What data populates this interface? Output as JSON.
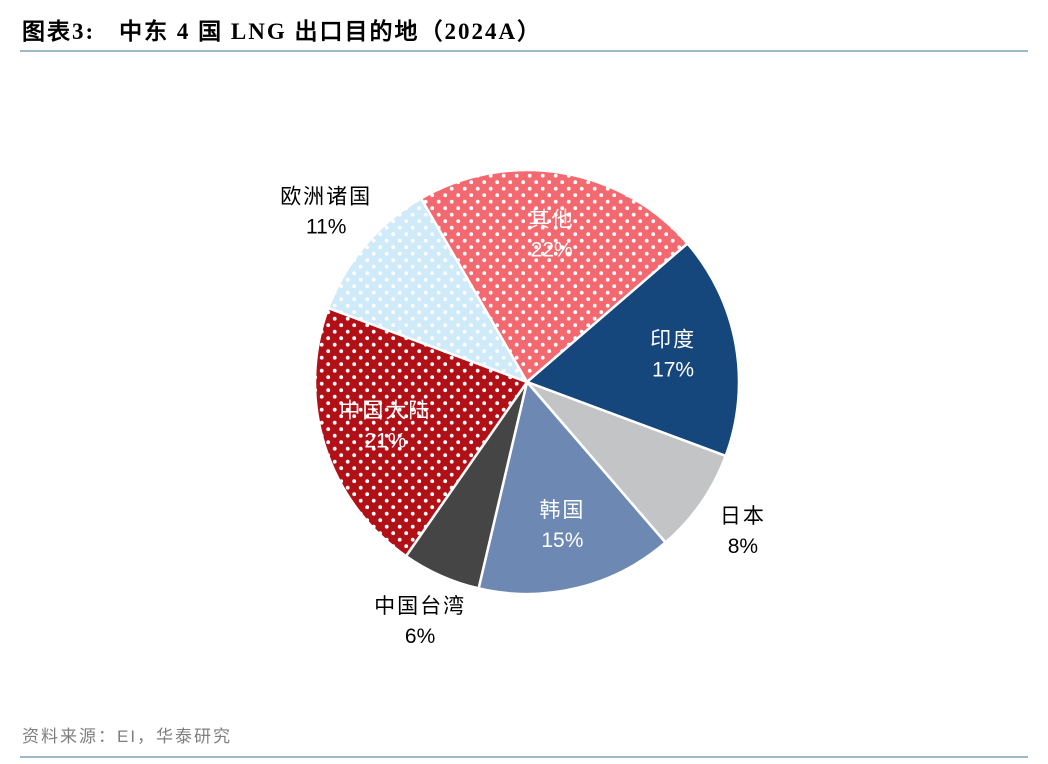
{
  "header": {
    "title_prefix": "图表3:",
    "title": "中东 4 国 LNG 出口目的地（2024A）"
  },
  "footer": {
    "source": "资料来源：EI，华泰研究"
  },
  "chart_data": {
    "type": "pie",
    "title": "中东 4 国 LNG 出口目的地（2024A）",
    "start_angle": -30,
    "label_radius_inside": 0.7,
    "label_radius_outside": 1.24,
    "legend": "none",
    "slices": [
      {
        "label": "其他",
        "value": 22,
        "color": "#f4696f",
        "pattern": "dots",
        "label_pos": "inside",
        "label_color": "#ffffff"
      },
      {
        "label": "印度",
        "value": 17,
        "color": "#16477c",
        "pattern": "solid",
        "label_pos": "inside",
        "label_color": "#ffffff"
      },
      {
        "label": "日本",
        "value": 8,
        "color": "#c3c4c6",
        "pattern": "solid",
        "label_pos": "outside",
        "label_color": "#000000"
      },
      {
        "label": "韩国",
        "value": 15,
        "color": "#6d89b3",
        "pattern": "solid",
        "label_pos": "inside",
        "label_color": "#ffffff"
      },
      {
        "label": "中国台湾",
        "value": 6,
        "color": "#454545",
        "pattern": "solid",
        "label_pos": "outside",
        "label_color": "#000000"
      },
      {
        "label": "中国大陆",
        "value": 21,
        "color": "#b01016",
        "pattern": "dots",
        "label_pos": "inside",
        "label_color": "#ffffff"
      },
      {
        "label": "欧洲诸国",
        "value": 11,
        "color": "#cfeaf8",
        "pattern": "dots",
        "label_pos": "outside",
        "label_color": "#000000"
      }
    ]
  }
}
